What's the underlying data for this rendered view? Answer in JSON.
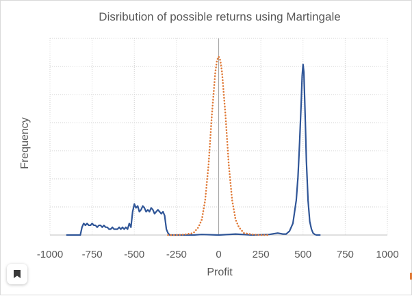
{
  "chart_data": {
    "type": "line",
    "title": "Disribution of possible returns using Martingale",
    "xlabel": "Profit",
    "ylabel": "Frequency",
    "xlim": [
      -1000,
      1000
    ],
    "xticks": [
      -1000,
      -750,
      -500,
      -250,
      0,
      250,
      500,
      750,
      1000
    ],
    "tick_labels": [
      "-1000",
      "-750",
      "-500",
      "-250",
      "0",
      "250",
      "500",
      "750",
      "1000"
    ],
    "ylim": [
      0,
      100
    ],
    "y_tick_labels_shown": false,
    "grid": "dotted",
    "legend": "none",
    "series": [
      {
        "style": "solid",
        "color": "#2f5597",
        "x": [
          -900,
          -820,
          -810,
          -800,
          -790,
          -780,
          -770,
          -760,
          -750,
          -740,
          -730,
          -720,
          -710,
          -700,
          -690,
          -680,
          -670,
          -660,
          -650,
          -640,
          -630,
          -620,
          -610,
          -600,
          -590,
          -580,
          -570,
          -560,
          -550,
          -540,
          -530,
          -520,
          -510,
          -500,
          -490,
          -480,
          -470,
          -460,
          -450,
          -440,
          -430,
          -420,
          -410,
          -400,
          -390,
          -380,
          -370,
          -360,
          -350,
          -340,
          -330,
          -320,
          -310,
          -300,
          -290,
          -250,
          -150,
          -100,
          0,
          100,
          200,
          300,
          350,
          380,
          400,
          420,
          440,
          460,
          470,
          480,
          490,
          495,
          500,
          505,
          510,
          515,
          520,
          530,
          540,
          550,
          560,
          570,
          580,
          600
        ],
        "y": [
          0,
          0,
          4,
          6,
          5,
          6,
          5,
          5,
          6,
          5,
          5,
          4,
          5,
          5,
          4,
          5,
          4,
          4,
          3,
          3,
          4,
          3,
          3,
          3,
          4,
          3,
          4,
          3,
          4,
          3,
          6,
          4,
          12,
          16,
          14,
          15,
          12,
          13,
          15,
          14,
          12,
          13,
          12,
          14,
          13,
          11,
          12,
          13,
          12,
          11,
          12,
          10,
          3,
          1,
          0,
          0,
          0,
          0.3,
          0,
          0.5,
          0,
          0.3,
          1,
          0.5,
          0.5,
          2,
          6,
          18,
          30,
          48,
          70,
          82,
          88,
          84,
          70,
          55,
          38,
          18,
          7,
          3,
          1,
          0.3,
          0,
          0
        ]
      },
      {
        "style": "dotted",
        "color": "#e07b39",
        "x": [
          -300,
          -250,
          -200,
          -150,
          -120,
          -100,
          -80,
          -60,
          -40,
          -20,
          -10,
          0,
          10,
          20,
          40,
          60,
          80,
          100,
          120,
          150,
          200,
          250,
          300
        ],
        "y": [
          0,
          0,
          0.3,
          1,
          4,
          8,
          18,
          36,
          62,
          84,
          90,
          92,
          90,
          84,
          62,
          36,
          18,
          8,
          4,
          1,
          0.3,
          0,
          0
        ]
      }
    ]
  }
}
